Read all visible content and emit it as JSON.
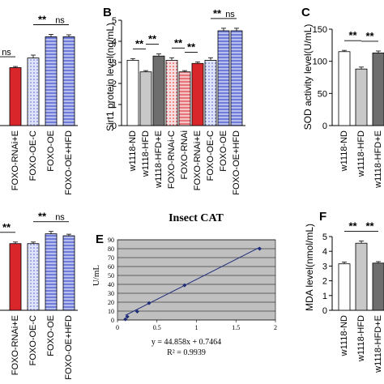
{
  "colors": {
    "white": "#ffffff",
    "gray": "#c8c8c8",
    "darkgray": "#6e6e6e",
    "red": "#d9262b",
    "pink": "#f2c9cc",
    "lightblue": "#c9cff0",
    "blue": "#5565d2",
    "cat_bg": "#c0c0c0",
    "cat_line": "#1f2d7a"
  },
  "chart_data": [
    {
      "panel": "A (partial)",
      "type": "bar",
      "categories": [
        "FOXO-RNAi+E",
        "FOXO-OE-C",
        "FOXO-OE",
        "FOXO-OE+HFD"
      ],
      "values": [
        3.0,
        3.5,
        4.6,
        4.6
      ],
      "errors": [
        0.06,
        0.15,
        0.12,
        0.1
      ],
      "fills": [
        "red",
        "lightblue",
        "blue",
        "blue"
      ],
      "patterns": [
        "solid",
        "dots",
        "hlines",
        "hlines"
      ],
      "ylim": [
        0,
        6
      ],
      "brackets": [
        {
          "from": 1,
          "to": 2,
          "label": "**"
        },
        {
          "from": 2,
          "to": 3,
          "label": "ns"
        },
        {
          "from": -1,
          "to": 0,
          "label": "ns"
        }
      ]
    },
    {
      "panel": "B",
      "type": "bar",
      "title": "B",
      "ylabel": "Sirt1 protein level(ng/mL)",
      "categories": [
        "w1118-ND",
        "w1118-HFD",
        "w1118-HFD+E",
        "FOXO-RNAi-C",
        "FOXO-RNAi",
        "FOXO-RNAi+E",
        "FOXO-OE-C",
        "FOXO-OE",
        "FOXO-OE+HFD"
      ],
      "values": [
        3.1,
        2.55,
        3.3,
        3.1,
        2.55,
        2.95,
        3.1,
        4.5,
        4.5
      ],
      "errors": [
        0.08,
        0.06,
        0.1,
        0.12,
        0.06,
        0.07,
        0.12,
        0.12,
        0.12
      ],
      "fills": [
        "white",
        "gray",
        "darkgray",
        "pink",
        "red",
        "red",
        "lightblue",
        "blue",
        "blue"
      ],
      "patterns": [
        "solid",
        "solid",
        "solid",
        "dots",
        "hlines",
        "solid",
        "dots",
        "hlines",
        "hlines"
      ],
      "ylim": [
        0,
        5
      ],
      "yticks": [
        0,
        1,
        2,
        3,
        4,
        5
      ],
      "brackets": [
        {
          "from": 0,
          "to": 1,
          "label": "**"
        },
        {
          "from": 1,
          "to": 2,
          "label": "**"
        },
        {
          "from": 3,
          "to": 4,
          "label": "**"
        },
        {
          "from": 4,
          "to": 5,
          "label": "**"
        },
        {
          "from": 6,
          "to": 7,
          "label": "**"
        },
        {
          "from": 7,
          "to": 8,
          "label": "ns"
        }
      ]
    },
    {
      "panel": "C (partial)",
      "type": "bar",
      "title": "C",
      "ylabel": "SOD activity level(U/mL)",
      "categories": [
        "w1118-ND",
        "w1118-HFD",
        "w1118-HFD+E"
      ],
      "values": [
        115,
        88,
        113
      ],
      "errors": [
        2,
        3,
        3
      ],
      "fills": [
        "white",
        "gray",
        "darkgray"
      ],
      "patterns": [
        "solid",
        "solid",
        "solid"
      ],
      "ylim": [
        0,
        150
      ],
      "yticks": [
        0,
        50,
        100,
        150
      ],
      "brackets": [
        {
          "from": 0,
          "to": 1,
          "label": "**"
        },
        {
          "from": 1,
          "to": 2,
          "label": "**"
        }
      ]
    },
    {
      "panel": "D (partial)",
      "type": "bar",
      "categories": [
        "FOXO-RNAi+E",
        "FOXO-OE-C",
        "FOXO-OE",
        "FOXO-OE+HFD"
      ],
      "values": [
        3.4,
        3.4,
        3.9,
        3.8
      ],
      "errors": [
        0.08,
        0.08,
        0.12,
        0.08
      ],
      "fills": [
        "red",
        "lightblue",
        "blue",
        "blue"
      ],
      "patterns": [
        "solid",
        "dots",
        "hlines",
        "hlines"
      ],
      "ylim": [
        0,
        5
      ],
      "brackets": [
        {
          "from": 1,
          "to": 2,
          "label": "**"
        },
        {
          "from": 2,
          "to": 3,
          "label": "ns"
        },
        {
          "from": -1,
          "to": 0,
          "label": "**"
        }
      ]
    },
    {
      "panel": "E",
      "type": "scatter",
      "panel_label": "E",
      "title": "Insect CAT",
      "ylabel": "U/mL",
      "x": [
        0.1,
        0.125,
        0.25,
        0.4,
        0.85,
        1.8
      ],
      "y": [
        0.8,
        3.7,
        9.5,
        19.0,
        39.0,
        80.0
      ],
      "xlim": [
        0,
        2
      ],
      "ylim": [
        0,
        90
      ],
      "xticks": [
        "0",
        "0.5",
        "1",
        "1.5",
        "2"
      ],
      "yticks": [
        "0",
        "10",
        "20",
        "30",
        "40",
        "50",
        "60",
        "70",
        "80",
        "90"
      ],
      "equation": "y = 44.858x + 0.7464",
      "r2": "R² = 0.9939",
      "fit": {
        "slope": 44.858,
        "intercept": 0.7464
      },
      "grid": true
    },
    {
      "panel": "F (partial)",
      "type": "bar",
      "title": "F",
      "ylabel": "MDA level(nmol/mL)",
      "categories": [
        "w1118-ND",
        "w1118-HFD",
        "w1118-HFD+E"
      ],
      "values": [
        3.15,
        4.55,
        3.2
      ],
      "errors": [
        0.12,
        0.15,
        0.1
      ],
      "fills": [
        "white",
        "gray",
        "darkgray"
      ],
      "patterns": [
        "solid",
        "solid",
        "solid"
      ],
      "ylim": [
        0,
        5
      ],
      "yticks": [
        0,
        1,
        2,
        3,
        4,
        5
      ],
      "brackets": [
        {
          "from": 0,
          "to": 1,
          "label": "**"
        },
        {
          "from": 1,
          "to": 2,
          "label": "**"
        }
      ]
    }
  ]
}
